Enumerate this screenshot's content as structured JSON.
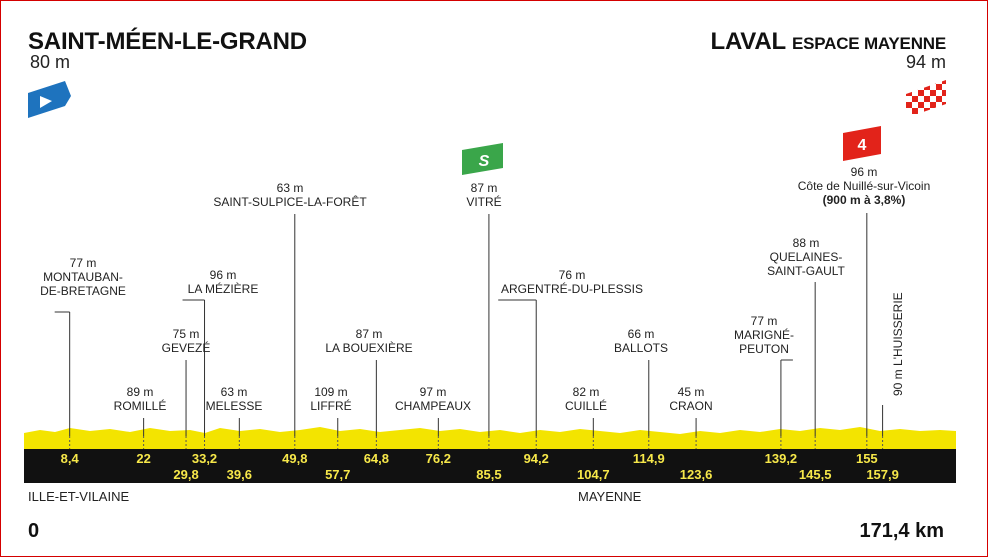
{
  "start": {
    "name": "SAINT-MÉEN-LE-GRAND",
    "altitude": "80 m"
  },
  "finish": {
    "name_main": "LAVAL",
    "name_sub": "ESPACE MAYENNE",
    "altitude": "94 m"
  },
  "distance": {
    "start_label": "0",
    "end_label": "171,4 km"
  },
  "regions": [
    "ILLE-ET-VILAINE",
    "MAYENNE"
  ],
  "colors": {
    "profile_fill": "#f3e400",
    "base_band": "#111111",
    "km_text": "#f7e84a",
    "sprint_green": "#3aa64a",
    "climb_red": "#e2231a",
    "start_blue": "#1e73be"
  },
  "icons": {
    "start": "start-flag-icon",
    "finish": "checkered-finish-flag-icon",
    "sprint": "intermediate-sprint-icon",
    "climb": "category-4-climb-icon"
  },
  "sprint_badge": "S",
  "climb_badge": "4",
  "waypoints": [
    {
      "km": "8,4",
      "row": "top",
      "alt": "77 m",
      "name1": "MONTAUBAN-",
      "name2": "DE-BRETAGNE"
    },
    {
      "km": "22",
      "row": "top",
      "alt": "89 m",
      "name1": "ROMILLÉ",
      "name2": ""
    },
    {
      "km": "29,8",
      "row": "bottom",
      "alt": "75 m",
      "name1": "GEVEZÉ",
      "name2": ""
    },
    {
      "km": "33,2",
      "row": "top",
      "alt": "96 m",
      "name1": "LA MÉZIÈRE",
      "name2": ""
    },
    {
      "km": "39,6",
      "row": "bottom",
      "alt": "63 m",
      "name1": "MELESSE",
      "name2": ""
    },
    {
      "km": "49,8",
      "row": "top",
      "alt": "63 m",
      "name1": "SAINT-SULPICE-LA-FORÊT",
      "name2": ""
    },
    {
      "km": "57,7",
      "row": "bottom",
      "alt": "109 m",
      "name1": "LIFFRÉ",
      "name2": ""
    },
    {
      "km": "64,8",
      "row": "top",
      "alt": "87 m",
      "name1": "LA BOUEXIÈRE",
      "name2": ""
    },
    {
      "km": "76,2",
      "row": "top",
      "alt": "97 m",
      "name1": "CHAMPEAUX",
      "name2": ""
    },
    {
      "km": "85,5",
      "row": "bottom",
      "alt": "87 m",
      "name1": "VITRÉ",
      "name2": ""
    },
    {
      "km": "94,2",
      "row": "top",
      "alt": "76 m",
      "name1": "ARGENTRÉ-DU-PLESSIS",
      "name2": ""
    },
    {
      "km": "104,7",
      "row": "bottom",
      "alt": "82 m",
      "name1": "CUILLÉ",
      "name2": ""
    },
    {
      "km": "114,9",
      "row": "top",
      "alt": "66 m",
      "name1": "BALLOTS",
      "name2": ""
    },
    {
      "km": "123,6",
      "row": "bottom",
      "alt": "45 m",
      "name1": "CRAON",
      "name2": ""
    },
    {
      "km": "139,2",
      "row": "top",
      "alt": "77 m",
      "name1": "MARIGNÉ-",
      "name2": "PEUTON"
    },
    {
      "km": "145,5",
      "row": "bottom",
      "alt": "88 m",
      "name1": "QUELAINES-",
      "name2": "SAINT-GAULT"
    },
    {
      "km": "155",
      "row": "top",
      "alt": "96 m",
      "name1": "Côte de Nuillé-sur-Vicoin",
      "name2": "(900 m à 3,8%)"
    },
    {
      "km": "157,9",
      "row": "bottom",
      "alt": "90 m",
      "name1": "L'HUISSERIE",
      "name2": ""
    }
  ]
}
